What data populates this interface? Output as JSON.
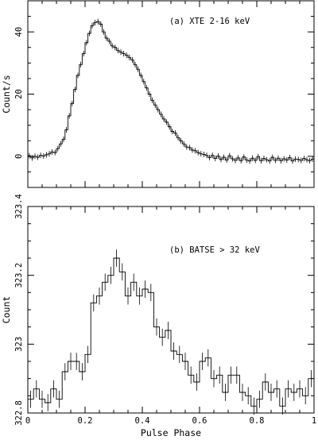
{
  "figure": {
    "xlabel": "Pulse Phase"
  },
  "chart_data": [
    {
      "type": "line",
      "drawstyle": "steps-mid",
      "annotation": "(a) XTE 2-16 keV",
      "xlabel": "Pulse Phase",
      "ylabel": "Count/s",
      "xlim": [
        0,
        1
      ],
      "ylim": [
        -10,
        50
      ],
      "xticks": [
        0,
        0.2,
        0.4,
        0.6,
        0.8,
        1
      ],
      "yticks": [
        0,
        20,
        40
      ],
      "ytick_labels": [
        "0",
        "20",
        "40"
      ],
      "xtick_labels_shown": false,
      "error_bars": true,
      "series": [
        {
          "x": [
            0.005,
            0.015,
            0.025,
            0.035,
            0.045,
            0.055,
            0.065,
            0.075,
            0.085,
            0.095,
            0.105,
            0.115,
            0.125,
            0.135,
            0.145,
            0.155,
            0.165,
            0.175,
            0.185,
            0.195,
            0.205,
            0.215,
            0.225,
            0.235,
            0.245,
            0.255,
            0.265,
            0.275,
            0.285,
            0.295,
            0.305,
            0.315,
            0.325,
            0.335,
            0.345,
            0.355,
            0.365,
            0.375,
            0.385,
            0.395,
            0.405,
            0.415,
            0.425,
            0.435,
            0.445,
            0.455,
            0.465,
            0.475,
            0.485,
            0.495,
            0.505,
            0.515,
            0.525,
            0.535,
            0.545,
            0.555,
            0.565,
            0.575,
            0.585,
            0.595,
            0.605,
            0.615,
            0.625,
            0.635,
            0.645,
            0.655,
            0.665,
            0.675,
            0.685,
            0.695,
            0.705,
            0.715,
            0.725,
            0.735,
            0.745,
            0.755,
            0.765,
            0.775,
            0.785,
            0.795,
            0.805,
            0.815,
            0.825,
            0.835,
            0.845,
            0.855,
            0.865,
            0.875,
            0.885,
            0.895,
            0.905,
            0.915,
            0.925,
            0.935,
            0.945,
            0.955,
            0.965,
            0.975,
            0.985,
            0.995
          ],
          "values": [
            0.2,
            -0.5,
            0,
            -0.3,
            0.3,
            0.1,
            0.5,
            0.8,
            1.4,
            1.2,
            2.5,
            4.0,
            5.5,
            8.5,
            13,
            17,
            21.5,
            26,
            29.5,
            33,
            36.5,
            39.5,
            42,
            43,
            43.3,
            42.5,
            40,
            38,
            37,
            35.5,
            35,
            34,
            33.5,
            33,
            32.5,
            31.8,
            31,
            29.5,
            28,
            26,
            24,
            22,
            20,
            18,
            16.5,
            15,
            13.5,
            12,
            11,
            9.5,
            8,
            7.5,
            6,
            5,
            4,
            3,
            2.8,
            2,
            1.8,
            1.2,
            0.8,
            0.6,
            0.3,
            -0.4,
            0.3,
            -0.7,
            0.1,
            -1.0,
            -0.3,
            -1.2,
            0.2,
            -0.8,
            -1.3,
            -0.5,
            -1.4,
            -0.2,
            -1.2,
            -1.5,
            -0.6,
            -1.3,
            -0.1,
            -1.4,
            -0.7,
            -1.1,
            -1.5,
            -0.3,
            -1.3,
            -0.6,
            -1.4,
            -0.8,
            -1.2,
            -0.4,
            -1.5,
            -0.9,
            -1.0,
            -1.3,
            -0.7,
            -1.1,
            -1.4,
            -0.9
          ],
          "errors": 0.9
        }
      ]
    },
    {
      "type": "line",
      "drawstyle": "steps-mid",
      "annotation": "(b) BATSE > 32 keV",
      "xlabel": "Pulse Phase",
      "ylabel": "Count",
      "xlim": [
        0,
        1
      ],
      "ylim": [
        322.8,
        323.4
      ],
      "xticks": [
        0,
        0.2,
        0.4,
        0.6,
        0.8,
        1
      ],
      "xtick_labels": [
        "0",
        "0.2",
        "0.4",
        "0.6",
        "0.8",
        "1"
      ],
      "yticks": [
        322.8,
        323,
        323.2,
        323.4
      ],
      "ytick_labels": [
        "322.8",
        "323",
        "323.2",
        "323.4"
      ],
      "error_bars": true,
      "series": [
        {
          "x": [
            0.01,
            0.03,
            0.05,
            0.07,
            0.09,
            0.11,
            0.13,
            0.15,
            0.17,
            0.19,
            0.21,
            0.23,
            0.25,
            0.27,
            0.29,
            0.31,
            0.33,
            0.35,
            0.37,
            0.39,
            0.41,
            0.43,
            0.45,
            0.47,
            0.49,
            0.51,
            0.53,
            0.55,
            0.57,
            0.59,
            0.61,
            0.63,
            0.65,
            0.67,
            0.69,
            0.71,
            0.73,
            0.75,
            0.77,
            0.79,
            0.81,
            0.83,
            0.85,
            0.87,
            0.89,
            0.91,
            0.93,
            0.95,
            0.97,
            0.99
          ],
          "values": [
            322.84,
            322.87,
            322.84,
            322.83,
            322.87,
            322.84,
            322.92,
            322.95,
            322.95,
            322.92,
            322.97,
            323.12,
            323.14,
            323.18,
            323.2,
            323.25,
            323.21,
            323.14,
            323.18,
            323.14,
            323.16,
            323.15,
            323.05,
            323.02,
            323.04,
            322.98,
            322.97,
            322.95,
            322.91,
            322.89,
            322.95,
            322.96,
            322.9,
            322.91,
            322.86,
            322.91,
            322.91,
            322.86,
            322.85,
            322.82,
            322.84,
            322.89,
            322.86,
            322.87,
            322.82,
            322.87,
            322.86,
            322.87,
            322.85,
            322.9
          ],
          "errors": 0.025
        }
      ]
    }
  ]
}
